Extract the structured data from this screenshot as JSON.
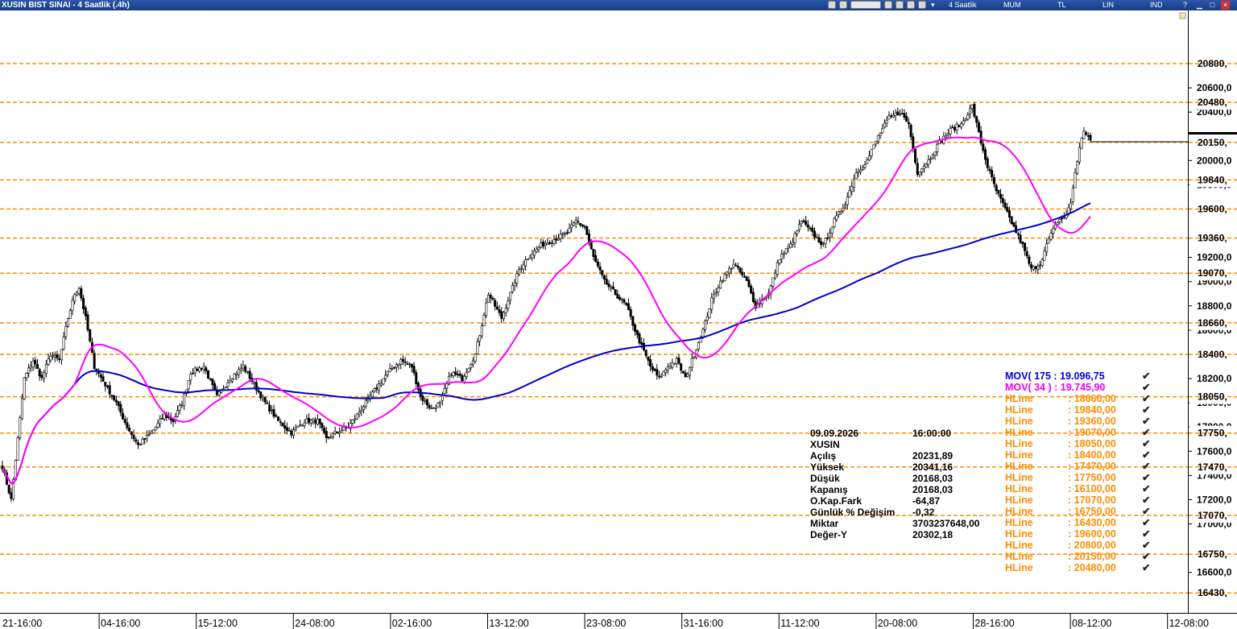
{
  "window": {
    "title": "XUSIN BIST SINAI - 4 Saatlik (.4h)",
    "period_label": "4 Saatlik",
    "chart_type_label": "MUM",
    "currency_label": "TL",
    "scale_label": "LIN",
    "mode_label": "IND",
    "toolbar_icons": [
      "chart-icon",
      "refresh-icon",
      "toolbar-combo",
      "grid-icon",
      "draw-icon",
      "color-icon",
      "arrow-icon",
      "dropdown-icon"
    ],
    "controls": [
      "help-icon",
      "minimize-icon",
      "maximize-icon",
      "close-icon"
    ]
  },
  "price_axis": {
    "ticks": [
      "20600,0",
      "20400,0",
      "20000,0",
      "19800,0",
      "19200,0",
      "19000,0",
      "18800,0",
      "18600,0",
      "18200,0",
      "18000,0",
      "17800,0",
      "17600,0",
      "17400,0",
      "17200,0",
      "17000,0",
      "16600,0"
    ],
    "hline_tags": [
      "20800,",
      "20480,",
      "20150,",
      "19840,",
      "19600,",
      "19360,",
      "19070,",
      "18660,",
      "18400,",
      "18050,",
      "17750,",
      "17470,",
      "17070,",
      "16750,",
      "16430,"
    ]
  },
  "time_axis": {
    "labels": [
      "21-16:00",
      "04-16:00",
      "15-12:00",
      "24-08:00",
      "02-16:00",
      "13-12:00",
      "23-08:00",
      "31-16:00",
      "11-12:00",
      "20-08:00",
      "28-16:00",
      "08-12:00",
      "12-08:00"
    ]
  },
  "info_panel": {
    "date": "09.09.2026",
    "time": "16:00:00",
    "symbol": "XUSIN",
    "rows": [
      {
        "label": "Açılış",
        "value": "20231,89"
      },
      {
        "label": "Yüksek",
        "value": "20341,16"
      },
      {
        "label": "Düşük",
        "value": "20168,03"
      },
      {
        "label": "Kapanış",
        "value": "20168,03"
      },
      {
        "label": "O.Kap.Fark",
        "value": "-64,87"
      },
      {
        "label": "Günlük % Değişim",
        "value": "-0,32"
      },
      {
        "label": "Miktar",
        "value": "3703237648,00"
      },
      {
        "label": "Değer-Y",
        "value": "20302,18"
      }
    ]
  },
  "legend": {
    "check_glyph": "✔",
    "mov": [
      {
        "label": "MOV( 175 : 19.096,75",
        "color": "#0000ee"
      },
      {
        "label": "MOV( 34 ) : 19.745,90",
        "color": "#ee00ee"
      }
    ],
    "hlines": [
      {
        "label": "HLine",
        "value": ": 18660,00"
      },
      {
        "label": "HLine",
        "value": ": 19840,00"
      },
      {
        "label": "HLine",
        "value": ": 19360,00"
      },
      {
        "label": "HLine",
        "value": ": 19070,00"
      },
      {
        "label": "HLine",
        "value": ": 18050,00"
      },
      {
        "label": "HLine",
        "value": ": 18400,00"
      },
      {
        "label": "HLine",
        "value": ": 17470,00"
      },
      {
        "label": "HLine",
        "value": ": 17750,00"
      },
      {
        "label": "HLine",
        "value": ": 16100,00"
      },
      {
        "label": "HLine",
        "value": ": 17070,00"
      },
      {
        "label": "HLine",
        "value": ": 16750,00"
      },
      {
        "label": "HLine",
        "value": ": 16430,00"
      },
      {
        "label": "HLine",
        "value": ": 19600,00"
      },
      {
        "label": "HLine",
        "value": ": 20800,00"
      },
      {
        "label": "HLine",
        "value": ": 20150,00"
      },
      {
        "label": "HLine",
        "value": ": 20480,00"
      }
    ],
    "hline_color": "#ff8c00"
  },
  "colors": {
    "hline": "#ff8c00",
    "mov_slow": "#0000cc",
    "mov_fast": "#ff00ff",
    "candle_up": "#ffffff",
    "candle_down": "#000000"
  },
  "chart_data": {
    "type": "candlestick",
    "symbol": "XUSIN",
    "interval": "4h",
    "hlines": [
      20800,
      20480,
      20150,
      19840,
      19600,
      19360,
      19070,
      18660,
      18400,
      18050,
      17750,
      17470,
      17070,
      16750,
      16430
    ],
    "last_close": 20168.03,
    "moving_averages": [
      {
        "period": 175,
        "value": 19096.75
      },
      {
        "period": 34,
        "value": 19745.9
      }
    ],
    "close_path": [
      [
        0,
        17470
      ],
      [
        4,
        17200
      ],
      [
        7,
        17700
      ],
      [
        10,
        18200
      ],
      [
        14,
        18350
      ],
      [
        18,
        18200
      ],
      [
        22,
        18400
      ],
      [
        26,
        18350
      ],
      [
        30,
        18700
      ],
      [
        33,
        18900
      ],
      [
        35,
        18950
      ],
      [
        38,
        18700
      ],
      [
        42,
        18300
      ],
      [
        47,
        18150
      ],
      [
        52,
        18000
      ],
      [
        57,
        17800
      ],
      [
        62,
        17650
      ],
      [
        68,
        17750
      ],
      [
        74,
        17900
      ],
      [
        78,
        17850
      ],
      [
        82,
        18000
      ],
      [
        86,
        18250
      ],
      [
        92,
        18300
      ],
      [
        98,
        18050
      ],
      [
        104,
        18200
      ],
      [
        110,
        18300
      ],
      [
        115,
        18150
      ],
      [
        120,
        18000
      ],
      [
        126,
        17850
      ],
      [
        132,
        17750
      ],
      [
        138,
        17850
      ],
      [
        144,
        17850
      ],
      [
        148,
        17700
      ],
      [
        152,
        17750
      ],
      [
        158,
        17800
      ],
      [
        164,
        17950
      ],
      [
        170,
        18100
      ],
      [
        176,
        18250
      ],
      [
        182,
        18350
      ],
      [
        187,
        18300
      ],
      [
        191,
        18050
      ],
      [
        196,
        17950
      ],
      [
        200,
        18000
      ],
      [
        205,
        18250
      ],
      [
        210,
        18200
      ],
      [
        216,
        18400
      ],
      [
        222,
        18900
      ],
      [
        228,
        18700
      ],
      [
        232,
        18900
      ],
      [
        236,
        19100
      ],
      [
        240,
        19200
      ],
      [
        246,
        19300
      ],
      [
        252,
        19350
      ],
      [
        258,
        19400
      ],
      [
        262,
        19500
      ],
      [
        266,
        19450
      ],
      [
        270,
        19200
      ],
      [
        275,
        19000
      ],
      [
        280,
        18900
      ],
      [
        285,
        18800
      ],
      [
        290,
        18550
      ],
      [
        296,
        18300
      ],
      [
        300,
        18200
      ],
      [
        304,
        18300
      ],
      [
        308,
        18350
      ],
      [
        312,
        18200
      ],
      [
        316,
        18400
      ],
      [
        320,
        18600
      ],
      [
        324,
        18850
      ],
      [
        328,
        19000
      ],
      [
        334,
        19150
      ],
      [
        340,
        19000
      ],
      [
        344,
        18800
      ],
      [
        350,
        18900
      ],
      [
        355,
        19200
      ],
      [
        360,
        19300
      ],
      [
        365,
        19500
      ],
      [
        370,
        19400
      ],
      [
        375,
        19300
      ],
      [
        380,
        19500
      ],
      [
        385,
        19650
      ],
      [
        390,
        19900
      ],
      [
        395,
        20000
      ],
      [
        400,
        20200
      ],
      [
        405,
        20350
      ],
      [
        410,
        20400
      ],
      [
        414,
        20300
      ],
      [
        418,
        19900
      ],
      [
        423,
        20000
      ],
      [
        428,
        20150
      ],
      [
        433,
        20250
      ],
      [
        438,
        20300
      ],
      [
        443,
        20450
      ],
      [
        447,
        20150
      ],
      [
        450,
        19950
      ],
      [
        454,
        19750
      ],
      [
        458,
        19600
      ],
      [
        462,
        19450
      ],
      [
        466,
        19300
      ],
      [
        470,
        19100
      ],
      [
        474,
        19150
      ],
      [
        478,
        19350
      ],
      [
        482,
        19500
      ],
      [
        486,
        19550
      ],
      [
        488,
        19650
      ],
      [
        490,
        19900
      ],
      [
        492,
        20100
      ],
      [
        494,
        20250
      ],
      [
        497,
        20168
      ]
    ]
  }
}
